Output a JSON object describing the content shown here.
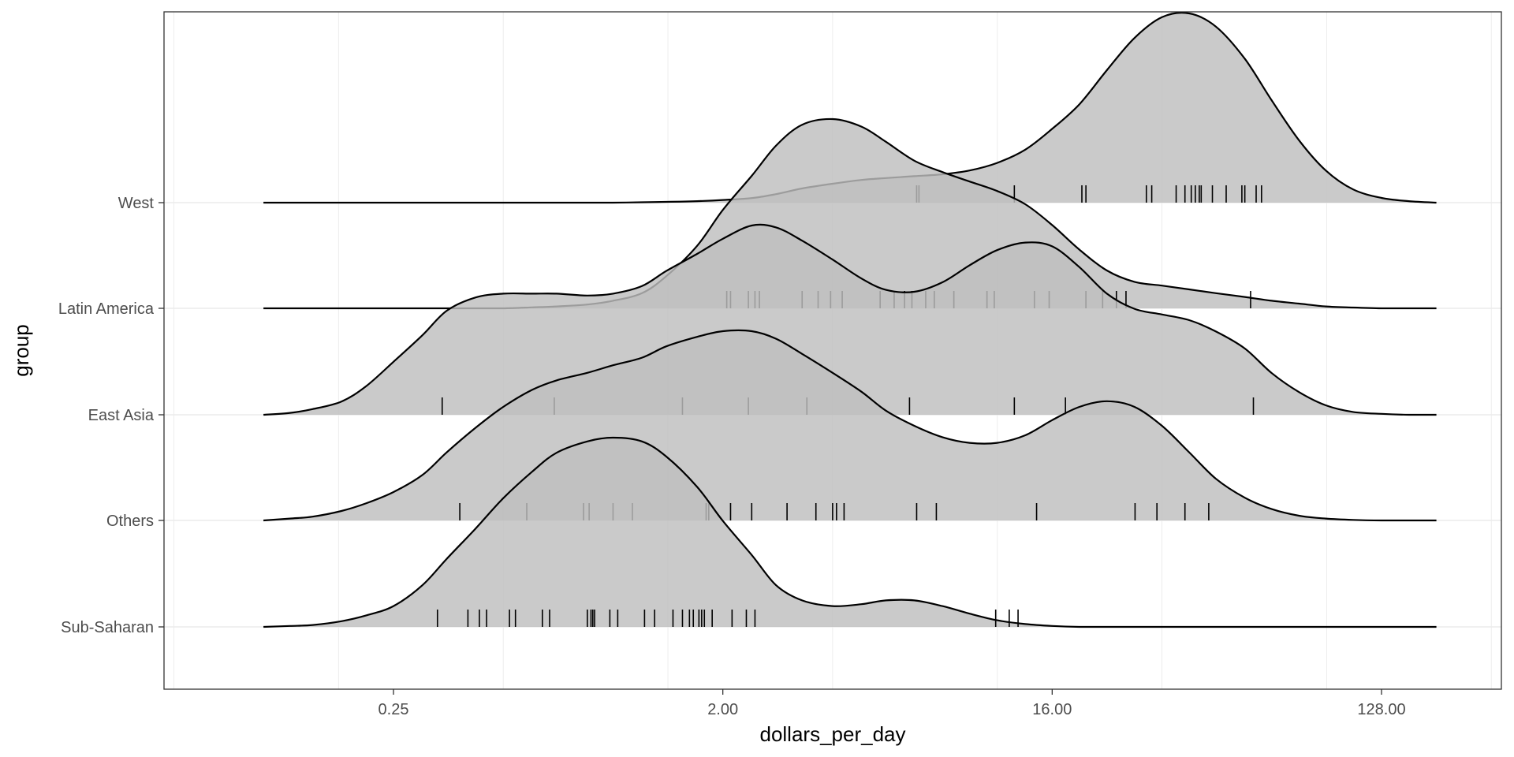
{
  "chart_data": {
    "type": "ridgeline",
    "title": "",
    "xlabel": "dollars_per_day",
    "ylabel": "group",
    "x_scale": "log2",
    "xlim": [
      0.06,
      200
    ],
    "x_ticks": [
      0.25,
      2,
      16,
      128
    ],
    "x_tick_labels": [
      "0.25",
      "2.00",
      "16.00",
      "128.00"
    ],
    "grid": true,
    "colors": {
      "fill": "#bebebe",
      "stroke": "#000000",
      "grid": "#ebebeb",
      "panel_border": "#333333"
    },
    "density_x": [
      0.11,
      0.13,
      0.15,
      0.18,
      0.21,
      0.25,
      0.3,
      0.35,
      0.42,
      0.5,
      0.6,
      0.7,
      0.85,
      1,
      1.2,
      1.4,
      1.7,
      2,
      2.4,
      2.8,
      3.3,
      4,
      4.8,
      5.6,
      6.7,
      8,
      9.5,
      11.3,
      13.5,
      16,
      19,
      22.6,
      26.9,
      32,
      38,
      45,
      54,
      64,
      76,
      90,
      107,
      128,
      152,
      181
    ],
    "groups": [
      {
        "name": "Sub-Saharan",
        "density": [
          0,
          0.005,
          0.01,
          0.03,
          0.06,
          0.11,
          0.22,
          0.36,
          0.52,
          0.68,
          0.82,
          0.92,
          0.98,
          1,
          0.98,
          0.9,
          0.74,
          0.56,
          0.38,
          0.22,
          0.14,
          0.11,
          0.12,
          0.14,
          0.14,
          0.11,
          0.07,
          0.035,
          0.015,
          0.005,
          0,
          0,
          0,
          0,
          0,
          0,
          0,
          0,
          0,
          0,
          0,
          0,
          0,
          0
        ],
        "rug": [
          0.33,
          0.4,
          0.43,
          0.45,
          0.52,
          0.54,
          0.64,
          0.67,
          0.85,
          0.87,
          0.88,
          0.89,
          0.98,
          1.03,
          1.22,
          1.3,
          1.46,
          1.55,
          1.62,
          1.66,
          1.72,
          1.75,
          1.78,
          1.87,
          2.12,
          2.32,
          2.45,
          11.2,
          12.2,
          12.9
        ]
      },
      {
        "name": "Others",
        "density": [
          0,
          0.01,
          0.02,
          0.05,
          0.09,
          0.15,
          0.24,
          0.36,
          0.49,
          0.6,
          0.69,
          0.74,
          0.78,
          0.82,
          0.86,
          0.92,
          0.97,
          1,
          1,
          0.96,
          0.88,
          0.78,
          0.68,
          0.58,
          0.5,
          0.44,
          0.41,
          0.41,
          0.45,
          0.53,
          0.6,
          0.63,
          0.6,
          0.5,
          0.36,
          0.22,
          0.12,
          0.06,
          0.025,
          0.01,
          0.003,
          0,
          0,
          0
        ],
        "rug": [
          0.38,
          0.58,
          0.83,
          0.86,
          1.0,
          1.13,
          1.8,
          1.83,
          2.1,
          2.4,
          3.0,
          3.6,
          4.0,
          4.1,
          4.3,
          6.8,
          7.7,
          14.5,
          27,
          31,
          37,
          43
        ]
      },
      {
        "name": "East Asia",
        "density": [
          0,
          0.01,
          0.03,
          0.07,
          0.15,
          0.28,
          0.42,
          0.55,
          0.62,
          0.64,
          0.64,
          0.64,
          0.63,
          0.64,
          0.68,
          0.76,
          0.85,
          0.93,
          1,
          0.99,
          0.92,
          0.82,
          0.72,
          0.66,
          0.65,
          0.7,
          0.79,
          0.87,
          0.91,
          0.89,
          0.78,
          0.64,
          0.56,
          0.53,
          0.5,
          0.44,
          0.35,
          0.22,
          0.12,
          0.05,
          0.015,
          0.005,
          0,
          0
        ],
        "rug": [
          0.34,
          0.69,
          1.55,
          2.35,
          3.4,
          6.5,
          12.6,
          17.4,
          57
        ]
      },
      {
        "name": "Latin America",
        "density": [
          0,
          0,
          0,
          0,
          0,
          0,
          0,
          0,
          0,
          0,
          0.005,
          0.01,
          0.02,
          0.04,
          0.08,
          0.17,
          0.33,
          0.52,
          0.7,
          0.86,
          0.97,
          1,
          0.96,
          0.88,
          0.78,
          0.72,
          0.67,
          0.62,
          0.55,
          0.44,
          0.31,
          0.2,
          0.14,
          0.12,
          0.1,
          0.08,
          0.06,
          0.04,
          0.025,
          0.01,
          0.004,
          0,
          0,
          0
        ],
        "rug": [
          2.05,
          2.1,
          2.35,
          2.45,
          2.52,
          3.3,
          3.65,
          3.95,
          4.25,
          5.4,
          5.9,
          6.3,
          6.6,
          7.2,
          7.6,
          8.6,
          10.6,
          11.1,
          14.3,
          15.7,
          19.8,
          22,
          24,
          25.5,
          56
        ]
      },
      {
        "name": "West",
        "density": [
          0,
          0,
          0,
          0,
          0,
          0,
          0,
          0,
          0,
          0,
          0,
          0,
          0,
          0,
          0.002,
          0.004,
          0.008,
          0.014,
          0.024,
          0.045,
          0.075,
          0.1,
          0.12,
          0.13,
          0.14,
          0.15,
          0.17,
          0.21,
          0.28,
          0.39,
          0.52,
          0.7,
          0.87,
          0.98,
          1,
          0.93,
          0.76,
          0.54,
          0.33,
          0.17,
          0.07,
          0.025,
          0.008,
          0
        ],
        "rug": [
          6.8,
          6.9,
          12.6,
          19.3,
          19.8,
          29,
          30,
          35,
          37,
          38.5,
          39.5,
          40.5,
          41,
          44,
          48,
          53,
          54,
          58,
          60
        ]
      }
    ]
  }
}
